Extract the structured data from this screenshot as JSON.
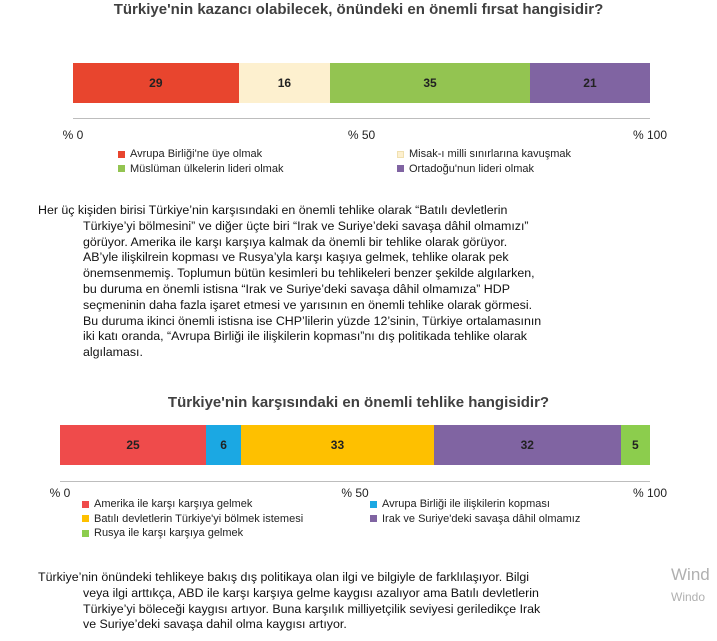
{
  "chart_data": [
    {
      "type": "bar",
      "orientation": "horizontal-stacked",
      "title": "Türkiye'nin kazancı olabilecek, önündeki en önemli fırsat hangisidir?",
      "categories": [
        "Avrupa Birliği'ne üye olmak",
        "Misak-ı milli sınırlarına kavuşmak",
        "Müslüman ülkelerin lideri olmak",
        "Ortadoğu'nun lideri olmak"
      ],
      "values": [
        29,
        16,
        35,
        21
      ],
      "colors": [
        "#e8452e",
        "#fdf0cf",
        "#93c451",
        "#8064a2"
      ],
      "xlim": [
        0,
        100
      ],
      "ticks": [
        "% 0",
        "% 50",
        "% 100"
      ],
      "legend": "bottom"
    },
    {
      "type": "bar",
      "orientation": "horizontal-stacked",
      "title": "Türkiye'nin karşısındaki en önemli tehlike hangisidir?",
      "categories": [
        "Amerika ile karşı karşıya gelmek",
        "Avrupa Birliği ile ilişkilerin kopması",
        "Batılı devletlerin Türkiye'yi bölmek istemesi",
        "Irak ve Suriye'deki savaşa dâhil olmamız",
        "Rusya ile karşı karşıya gelmek"
      ],
      "values": [
        25,
        6,
        33,
        32,
        5
      ],
      "colors": [
        "#ef4b4b",
        "#1ba8e3",
        "#fec000",
        "#8064a2",
        "#8ccd4d"
      ],
      "xlim": [
        0,
        100
      ],
      "ticks": [
        "% 0",
        "% 50",
        "% 100"
      ],
      "legend": "bottom"
    }
  ],
  "paragraph1": {
    "first": "Her üç kişiden birisi Türkiye’nin karşısındaki en önemli tehlike olarak “Batılı devletlerin",
    "lines": [
      "Türkiye’yi bölmesini” ve diğer üçte biri “Irak ve Suriye’deki savaşa dâhil olmamızı”",
      "görüyor. Amerika ile karşı karşıya kalmak da önemli bir tehlike olarak görüyor.",
      "AB’yle ilişkilrein kopması ve Rusya’yla karşı kaşıya gelmek, tehlike olarak pek",
      "önemsenmemiş. Toplumun bütün kesimleri bu tehlikeleri benzer şekilde algılarken,",
      "bu duruma en önemli istisna “Irak ve Suriye’deki savaşa dâhil olmamıza” HDP",
      "seçmeninin daha fazla işaret etmesi ve yarısının en önemli tehlike olarak görmesi.",
      "Bu duruma ikinci önemli istisna ise CHP’lilerin yüzde 12’sinin, Türkiye ortalamasının",
      "iki katı oranda, “Avrupa Birliği ile ilişkilerin kopması”nı dış politikada tehlike olarak",
      "algılaması."
    ]
  },
  "paragraph2": {
    "first": "Türkiye’nin önündeki tehlikeye bakış dış politikaya olan ilgi ve bilgiyle de farklılaşıyor. Bilgi",
    "lines": [
      "veya ilgi arttıkça, ABD ile karşı karşıya gelme kaygısı azalıyor ama Batılı devletlerin",
      "Türkiye’yi böleceği kaygısı artıyor. Buna karşılık milliyetçilik seviyesi geriledikçe Irak",
      "ve Suriye’deki savaşa dahil olma kaygısı artıyor."
    ]
  },
  "watermark": {
    "line1": "Wind",
    "line2": "Windo"
  }
}
